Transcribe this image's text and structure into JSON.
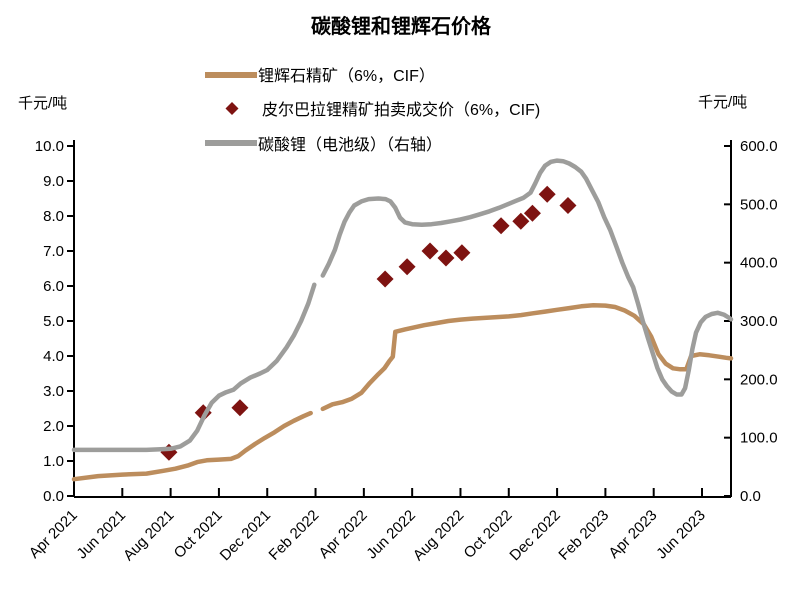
{
  "title": "碳酸锂和锂辉石价格",
  "left_axis_unit": "千元/吨",
  "right_axis_unit": "千元/吨",
  "colors": {
    "spodumene_line": "#BC8D5D",
    "auction_diamond": "#7E1311",
    "carbonate_line": "#9D9D9B",
    "axis": "#000000"
  },
  "legend": [
    {
      "label": "锂辉石精矿（6%，CIF）",
      "type": "line",
      "color_key": "spodumene_line"
    },
    {
      "label": "皮尔巴拉锂精矿拍卖成交价（6%，CIF)",
      "type": "diamond",
      "color_key": "auction_diamond"
    },
    {
      "label": "碳酸锂（电池级）（右轴）",
      "type": "line",
      "color_key": "carbonate_line"
    }
  ],
  "chart_data": {
    "type": "line",
    "title": "碳酸锂和锂辉石价格",
    "x_unit": "months since Apr 2021",
    "x_range": [
      0,
      27.2
    ],
    "x_tick_months": [
      0,
      2,
      4,
      6,
      8,
      10,
      12,
      14,
      16,
      18,
      20,
      22,
      24,
      26
    ],
    "x_tick_labels": [
      "Apr 2021",
      "Jun 2021",
      "Aug 2021",
      "Oct 2021",
      "Dec 2021",
      "Feb 2022",
      "Apr 2022",
      "Jun 2022",
      "Aug 2022",
      "Oct 2022",
      "Dec 2022",
      "Feb 2023",
      "Apr 2023",
      "Jun 2023"
    ],
    "left_axis": {
      "label": "千元/吨",
      "range": [
        0,
        10
      ],
      "ticks": [
        "0.0",
        "1.0",
        "2.0",
        "3.0",
        "4.0",
        "5.0",
        "6.0",
        "7.0",
        "8.0",
        "9.0",
        "10.0"
      ]
    },
    "right_axis": {
      "label": "千元/吨",
      "range": [
        0,
        600
      ],
      "ticks": [
        "0.0",
        "100.0",
        "200.0",
        "300.0",
        "400.0",
        "500.0",
        "600.0"
      ]
    },
    "grid": false,
    "legend_position": "top",
    "series": [
      {
        "id": "spodumene",
        "name": "锂辉石精矿（6%，CIF）",
        "axis": "left",
        "color_key": "spodumene_line",
        "style": "line",
        "segments": [
          [
            [
              0,
              0.48
            ],
            [
              1,
              0.57
            ],
            [
              2,
              0.61
            ],
            [
              3,
              0.64
            ],
            [
              3.7,
              0.72
            ],
            [
              4.2,
              0.78
            ],
            [
              4.7,
              0.87
            ],
            [
              5.1,
              0.97
            ],
            [
              5.5,
              1.02
            ],
            [
              6.0,
              1.04
            ],
            [
              6.5,
              1.06
            ],
            [
              6.8,
              1.14
            ],
            [
              7.1,
              1.3
            ],
            [
              7.5,
              1.49
            ],
            [
              7.9,
              1.66
            ],
            [
              8.3,
              1.82
            ],
            [
              8.7,
              2.0
            ],
            [
              9.1,
              2.15
            ],
            [
              9.5,
              2.28
            ],
            [
              9.8,
              2.37
            ]
          ],
          [
            [
              10.3,
              2.49
            ],
            [
              10.7,
              2.62
            ],
            [
              11.1,
              2.68
            ],
            [
              11.5,
              2.78
            ],
            [
              11.9,
              2.95
            ],
            [
              12.25,
              3.23
            ],
            [
              12.6,
              3.48
            ],
            [
              12.85,
              3.65
            ],
            [
              13.05,
              3.85
            ],
            [
              13.2,
              3.98
            ],
            [
              13.3,
              4.69
            ],
            [
              13.7,
              4.76
            ],
            [
              14.1,
              4.82
            ],
            [
              14.5,
              4.88
            ],
            [
              15.0,
              4.94
            ],
            [
              15.5,
              5.0
            ],
            [
              16.0,
              5.04
            ],
            [
              16.5,
              5.07
            ],
            [
              17.0,
              5.09
            ],
            [
              17.5,
              5.11
            ],
            [
              18.0,
              5.13
            ],
            [
              18.5,
              5.17
            ],
            [
              19.0,
              5.22
            ],
            [
              19.5,
              5.27
            ],
            [
              20.0,
              5.32
            ],
            [
              20.5,
              5.37
            ],
            [
              21.0,
              5.42
            ],
            [
              21.5,
              5.45
            ],
            [
              22.0,
              5.44
            ],
            [
              22.4,
              5.4
            ],
            [
              22.8,
              5.3
            ],
            [
              23.2,
              5.15
            ],
            [
              23.6,
              4.9
            ],
            [
              23.9,
              4.55
            ],
            [
              24.2,
              4.05
            ],
            [
              24.5,
              3.78
            ],
            [
              24.8,
              3.65
            ],
            [
              25.1,
              3.62
            ],
            [
              25.35,
              3.62
            ],
            [
              25.55,
              4.0
            ],
            [
              25.9,
              4.05
            ],
            [
              26.3,
              4.02
            ],
            [
              26.7,
              3.98
            ],
            [
              27.0,
              3.95
            ],
            [
              27.2,
              3.93
            ]
          ]
        ]
      },
      {
        "id": "auction",
        "name": "皮尔巴拉锂精矿拍卖成交价（6%，CIF)",
        "axis": "left",
        "color_key": "auction_diamond",
        "style": "points",
        "points": [
          [
            3.93,
            1.25
          ],
          [
            5.35,
            2.38
          ],
          [
            6.87,
            2.52
          ],
          [
            12.88,
            6.2
          ],
          [
            13.79,
            6.55
          ],
          [
            14.74,
            7.0
          ],
          [
            15.4,
            6.8
          ],
          [
            16.06,
            6.95
          ],
          [
            17.68,
            7.72
          ],
          [
            18.5,
            7.85
          ],
          [
            18.98,
            8.08
          ],
          [
            19.59,
            8.62
          ],
          [
            20.45,
            8.3
          ]
        ]
      },
      {
        "id": "carbonate",
        "name": "碳酸锂（电池级）（右轴）",
        "axis": "right",
        "color_key": "carbonate_line",
        "style": "line",
        "segments": [
          [
            [
              0,
              79
            ],
            [
              0.6,
              79
            ],
            [
              1.2,
              79
            ],
            [
              1.8,
              79
            ],
            [
              2.4,
              79
            ],
            [
              3.0,
              79
            ],
            [
              3.6,
              80
            ],
            [
              4.0,
              81
            ],
            [
              4.4,
              85
            ],
            [
              4.8,
              95
            ],
            [
              5.1,
              112
            ],
            [
              5.4,
              138
            ],
            [
              5.7,
              160
            ],
            [
              6.0,
              172
            ],
            [
              6.3,
              178
            ],
            [
              6.6,
              182
            ],
            [
              6.9,
              193
            ],
            [
              7.3,
              203
            ],
            [
              7.7,
              210
            ],
            [
              8.0,
              216
            ],
            [
              8.4,
              232
            ],
            [
              8.8,
              255
            ],
            [
              9.1,
              275
            ],
            [
              9.4,
              300
            ],
            [
              9.7,
              330
            ],
            [
              9.95,
              362
            ]
          ],
          [
            [
              10.3,
              378
            ],
            [
              10.55,
              398
            ],
            [
              10.8,
              422
            ],
            [
              11.0,
              448
            ],
            [
              11.2,
              470
            ],
            [
              11.4,
              486
            ],
            [
              11.6,
              498
            ],
            [
              11.9,
              505
            ],
            [
              12.2,
              509
            ],
            [
              12.6,
              510
            ],
            [
              12.9,
              509
            ],
            [
              13.1,
              505
            ],
            [
              13.3,
              494
            ],
            [
              13.5,
              477
            ],
            [
              13.7,
              469
            ],
            [
              14.0,
              466
            ],
            [
              14.4,
              465
            ],
            [
              14.8,
              466
            ],
            [
              15.2,
              468
            ],
            [
              15.6,
              471
            ],
            [
              16.0,
              474
            ],
            [
              16.4,
              478
            ],
            [
              16.8,
              483
            ],
            [
              17.2,
              488
            ],
            [
              17.6,
              494
            ],
            [
              18.0,
              501
            ],
            [
              18.3,
              506
            ],
            [
              18.6,
              511
            ],
            [
              18.9,
              520
            ],
            [
              19.1,
              536
            ],
            [
              19.3,
              554
            ],
            [
              19.5,
              566
            ],
            [
              19.75,
              573
            ],
            [
              20.0,
              575
            ],
            [
              20.25,
              574
            ],
            [
              20.5,
              570
            ],
            [
              20.75,
              564
            ],
            [
              21.0,
              556
            ],
            [
              21.2,
              544
            ],
            [
              21.45,
              524
            ],
            [
              21.7,
              504
            ],
            [
              21.95,
              478
            ],
            [
              22.2,
              456
            ],
            [
              22.45,
              428
            ],
            [
              22.7,
              400
            ],
            [
              22.95,
              375
            ],
            [
              23.15,
              358
            ],
            [
              23.35,
              330
            ],
            [
              23.55,
              300
            ],
            [
              23.75,
              272
            ],
            [
              23.95,
              246
            ],
            [
              24.15,
              220
            ],
            [
              24.35,
              200
            ],
            [
              24.55,
              188
            ],
            [
              24.75,
              179
            ],
            [
              24.95,
              174
            ],
            [
              25.15,
              174
            ],
            [
              25.3,
              185
            ],
            [
              25.45,
              215
            ],
            [
              25.6,
              252
            ],
            [
              25.75,
              280
            ],
            [
              25.95,
              298
            ],
            [
              26.15,
              307
            ],
            [
              26.4,
              312
            ],
            [
              26.65,
              314
            ],
            [
              26.9,
              311
            ],
            [
              27.1,
              306
            ],
            [
              27.2,
              303
            ]
          ]
        ]
      }
    ]
  }
}
